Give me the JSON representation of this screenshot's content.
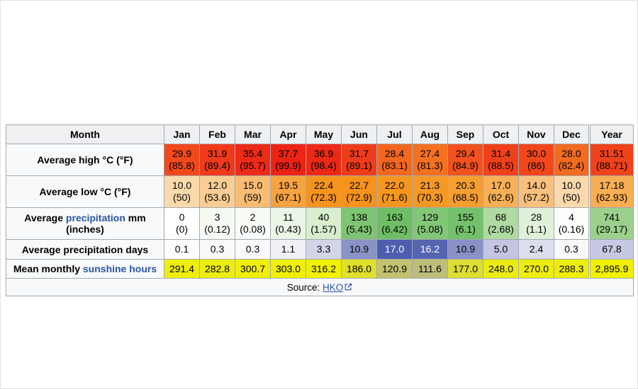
{
  "theme": {
    "link_color": "#2b55a8",
    "header_bg": "#eff0f2",
    "label_bg": "#f8f9fa",
    "border_color": "#a2a9b1"
  },
  "labels": {
    "month": "Month",
    "high": "Average high °C (°F)",
    "low": "Average low °C (°F)",
    "precip_pre": "Average ",
    "precip_link": "precipitation",
    "precip_post": " mm",
    "precip_line2": "(inches)",
    "days": "Average precipitation days",
    "sun_pre": "Mean monthly ",
    "sun_link": "sunshine hours",
    "source_prefix": "Source: ",
    "source_link": "HKO",
    "external_link_icon": "external-link-icon"
  },
  "header": {
    "cells": [
      {
        "v": "Jan"
      },
      {
        "v": "Feb"
      },
      {
        "v": "Mar"
      },
      {
        "v": "Apr"
      },
      {
        "v": "May"
      },
      {
        "v": "Jun"
      },
      {
        "v": "Jul"
      },
      {
        "v": "Aug"
      },
      {
        "v": "Sep"
      },
      {
        "v": "Oct"
      },
      {
        "v": "Nov"
      },
      {
        "v": "Dec"
      },
      {
        "v": "Year"
      }
    ]
  },
  "rows": {
    "high": {
      "cells": [
        {
          "v": "29.9",
          "f": "(85.8)",
          "bg": "#f2491c"
        },
        {
          "v": "31.9",
          "f": "(89.4)",
          "bg": "#f03a1a"
        },
        {
          "v": "35.4",
          "f": "(95.7)",
          "bg": "#ee2b17"
        },
        {
          "v": "37.7",
          "f": "(99.9)",
          "bg": "#ed2314"
        },
        {
          "v": "36.9",
          "f": "(98.4)",
          "bg": "#ed2916"
        },
        {
          "v": "31.7",
          "f": "(89.1)",
          "bg": "#f03c1a"
        },
        {
          "v": "28.4",
          "f": "(83.1)",
          "bg": "#f4671f"
        },
        {
          "v": "27.4",
          "f": "(81.3)",
          "bg": "#f5711f"
        },
        {
          "v": "29.4",
          "f": "(84.9)",
          "bg": "#f3511d"
        },
        {
          "v": "31.4",
          "f": "(88.5)",
          "bg": "#f1411b"
        },
        {
          "v": "30.0",
          "f": "(86)",
          "bg": "#f2471c"
        },
        {
          "v": "28.0",
          "f": "(82.4)",
          "bg": "#f46a20"
        },
        {
          "v": "31.51",
          "f": "(88.71)",
          "bg": "#f0421b"
        }
      ]
    },
    "low": {
      "cells": [
        {
          "v": "10.0",
          "f": "(50)",
          "bg": "#fbd9ac"
        },
        {
          "v": "12.0",
          "f": "(53.6)",
          "bg": "#facd94"
        },
        {
          "v": "15.0",
          "f": "(59)",
          "bg": "#f8bc72"
        },
        {
          "v": "19.5",
          "f": "(67.1)",
          "bg": "#f6a340"
        },
        {
          "v": "22.4",
          "f": "(72.3)",
          "bg": "#f7941d"
        },
        {
          "v": "22.7",
          "f": "(72.9)",
          "bg": "#f7931c"
        },
        {
          "v": "22.0",
          "f": "(71.6)",
          "bg": "#f7961f"
        },
        {
          "v": "21.3",
          "f": "(70.3)",
          "bg": "#f69924"
        },
        {
          "v": "20.3",
          "f": "(68.5)",
          "bg": "#f69e2e"
        },
        {
          "v": "17.0",
          "f": "(62.6)",
          "bg": "#f8af56"
        },
        {
          "v": "14.0",
          "f": "(57.2)",
          "bg": "#f9c07e"
        },
        {
          "v": "10.0",
          "f": "(50)",
          "bg": "#fbd9ac"
        },
        {
          "v": "17.18",
          "f": "(62.93)",
          "bg": "#f8ae54"
        }
      ]
    },
    "precip_mm": {
      "cells": [
        {
          "v": "0",
          "f": "(0)",
          "bg": "#ffffff"
        },
        {
          "v": "3",
          "f": "(0.12)",
          "bg": "#f5faf3"
        },
        {
          "v": "2",
          "f": "(0.08)",
          "bg": "#f8fbf6"
        },
        {
          "v": "11",
          "f": "(0.43)",
          "bg": "#ebf6e6"
        },
        {
          "v": "40",
          "f": "(1.57)",
          "bg": "#d8eecf"
        },
        {
          "v": "138",
          "f": "(5.43)",
          "bg": "#7ec573"
        },
        {
          "v": "163",
          "f": "(6.42)",
          "bg": "#6fbe66"
        },
        {
          "v": "129",
          "f": "(5.08)",
          "bg": "#82c777"
        },
        {
          "v": "155",
          "f": "(6.1)",
          "bg": "#74c16b"
        },
        {
          "v": "68",
          "f": "(2.68)",
          "bg": "#afdaa2"
        },
        {
          "v": "28",
          "f": "(1.1)",
          "bg": "#e0f1d9"
        },
        {
          "v": "4",
          "f": "(0.16)",
          "bg": "#fcfefb"
        },
        {
          "v": "741",
          "f": "(29.17)",
          "bg": "#9bd08d"
        }
      ]
    },
    "precip_days": {
      "cells": [
        {
          "v": "0.1",
          "bg": "#fdfdfe"
        },
        {
          "v": "0.3",
          "bg": "#fafafc"
        },
        {
          "v": "0.3",
          "bg": "#fafafc"
        },
        {
          "v": "1.1",
          "bg": "#f0f0f7"
        },
        {
          "v": "3.3",
          "bg": "#d3d5e9"
        },
        {
          "v": "10.9",
          "bg": "#8b92c7"
        },
        {
          "v": "17.0",
          "bg": "#4d5eae",
          "fg": "#ffffff"
        },
        {
          "v": "16.2",
          "bg": "#5565b2",
          "fg": "#ffffff"
        },
        {
          "v": "10.9",
          "bg": "#8a91c6"
        },
        {
          "v": "5.0",
          "bg": "#c3c5e2"
        },
        {
          "v": "2.4",
          "bg": "#dcdeed"
        },
        {
          "v": "0.3",
          "bg": "#f8f8fb"
        },
        {
          "v": "67.8",
          "bg": "#c7c9e4"
        }
      ]
    },
    "sunshine": {
      "cells": [
        {
          "v": "291.4",
          "bg": "#eeee0c"
        },
        {
          "v": "282.8",
          "bg": "#eded12"
        },
        {
          "v": "300.7",
          "bg": "#efef08"
        },
        {
          "v": "303.0",
          "bg": "#efef07"
        },
        {
          "v": "316.2",
          "bg": "#f0f003"
        },
        {
          "v": "186.0",
          "bg": "#dfdf2c"
        },
        {
          "v": "120.9",
          "bg": "#c2c270"
        },
        {
          "v": "111.6",
          "bg": "#bebe7b"
        },
        {
          "v": "177.0",
          "bg": "#dddd33"
        },
        {
          "v": "248.0",
          "bg": "#ebeb14"
        },
        {
          "v": "270.0",
          "bg": "#eded0e"
        },
        {
          "v": "288.3",
          "bg": "#eeee0b"
        },
        {
          "v": "2,895.9",
          "bg": "#f0f000"
        }
      ]
    }
  },
  "chart_data": {
    "type": "table",
    "title": "Climate data table",
    "categories": [
      "Jan",
      "Feb",
      "Mar",
      "Apr",
      "May",
      "Jun",
      "Jul",
      "Aug",
      "Sep",
      "Oct",
      "Nov",
      "Dec",
      "Year"
    ],
    "series": [
      {
        "name": "Average high °C",
        "values": [
          29.9,
          31.9,
          35.4,
          37.7,
          36.9,
          31.7,
          28.4,
          27.4,
          29.4,
          31.4,
          30.0,
          28.0,
          31.51
        ]
      },
      {
        "name": "Average high °F",
        "values": [
          85.8,
          89.4,
          95.7,
          99.9,
          98.4,
          89.1,
          83.1,
          81.3,
          84.9,
          88.5,
          86,
          82.4,
          88.71
        ]
      },
      {
        "name": "Average low °C",
        "values": [
          10.0,
          12.0,
          15.0,
          19.5,
          22.4,
          22.7,
          22.0,
          21.3,
          20.3,
          17.0,
          14.0,
          10.0,
          17.18
        ]
      },
      {
        "name": "Average low °F",
        "values": [
          50,
          53.6,
          59,
          67.1,
          72.3,
          72.9,
          71.6,
          70.3,
          68.5,
          62.6,
          57.2,
          50,
          62.93
        ]
      },
      {
        "name": "Average precipitation mm",
        "values": [
          0,
          3,
          2,
          11,
          40,
          138,
          163,
          129,
          155,
          68,
          28,
          4,
          741
        ]
      },
      {
        "name": "Average precipitation inches",
        "values": [
          0,
          0.12,
          0.08,
          0.43,
          1.57,
          5.43,
          6.42,
          5.08,
          6.1,
          2.68,
          1.1,
          0.16,
          29.17
        ]
      },
      {
        "name": "Average precipitation days",
        "values": [
          0.1,
          0.3,
          0.3,
          1.1,
          3.3,
          10.9,
          17.0,
          16.2,
          10.9,
          5.0,
          2.4,
          0.3,
          67.8
        ]
      },
      {
        "name": "Mean monthly sunshine hours",
        "values": [
          291.4,
          282.8,
          300.7,
          303.0,
          316.2,
          186.0,
          120.9,
          111.6,
          177.0,
          248.0,
          270.0,
          288.3,
          2895.9
        ]
      }
    ],
    "source": "HKO"
  }
}
